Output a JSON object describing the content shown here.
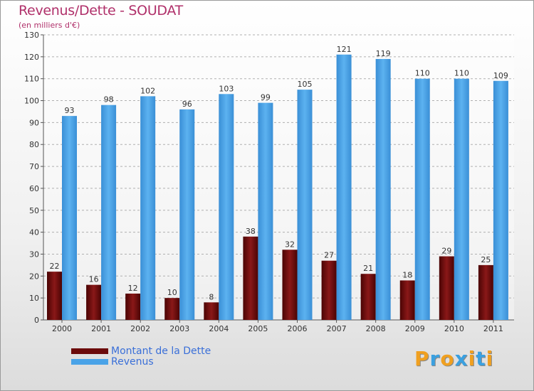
{
  "header": {
    "title": "Revenus/Dette - SOUDAT",
    "subtitle": "(en milliers d'€)"
  },
  "logo": {
    "letters": [
      "P",
      "r",
      "o",
      "x",
      "i",
      "t",
      "i"
    ],
    "colors": [
      "#f0a020",
      "#3aa0e0",
      "#f0a020",
      "#3aa0e0",
      "#f0a020",
      "#3aa0e0",
      "#f0a020"
    ]
  },
  "chart_data": {
    "type": "bar",
    "title": "Revenus/Dette - SOUDAT",
    "subtitle": "(en milliers d'€)",
    "categories": [
      "2000",
      "2001",
      "2002",
      "2003",
      "2004",
      "2005",
      "2006",
      "2007",
      "2008",
      "2009",
      "2010",
      "2011"
    ],
    "series": [
      {
        "name": "Montant de la Dette",
        "color": "#6b0a0a",
        "values": [
          22,
          16,
          12,
          10,
          8,
          38,
          32,
          27,
          21,
          18,
          29,
          25
        ]
      },
      {
        "name": "Revenus",
        "color": "#4aa3e8",
        "values": [
          93,
          98,
          102,
          96,
          103,
          99,
          105,
          121,
          119,
          110,
          110,
          109
        ]
      }
    ],
    "ylim": [
      0,
      130
    ],
    "yticks": [
      0,
      10,
      20,
      30,
      40,
      50,
      60,
      70,
      80,
      90,
      100,
      110,
      120,
      130
    ],
    "grid": true,
    "legend": "bottom-left"
  }
}
